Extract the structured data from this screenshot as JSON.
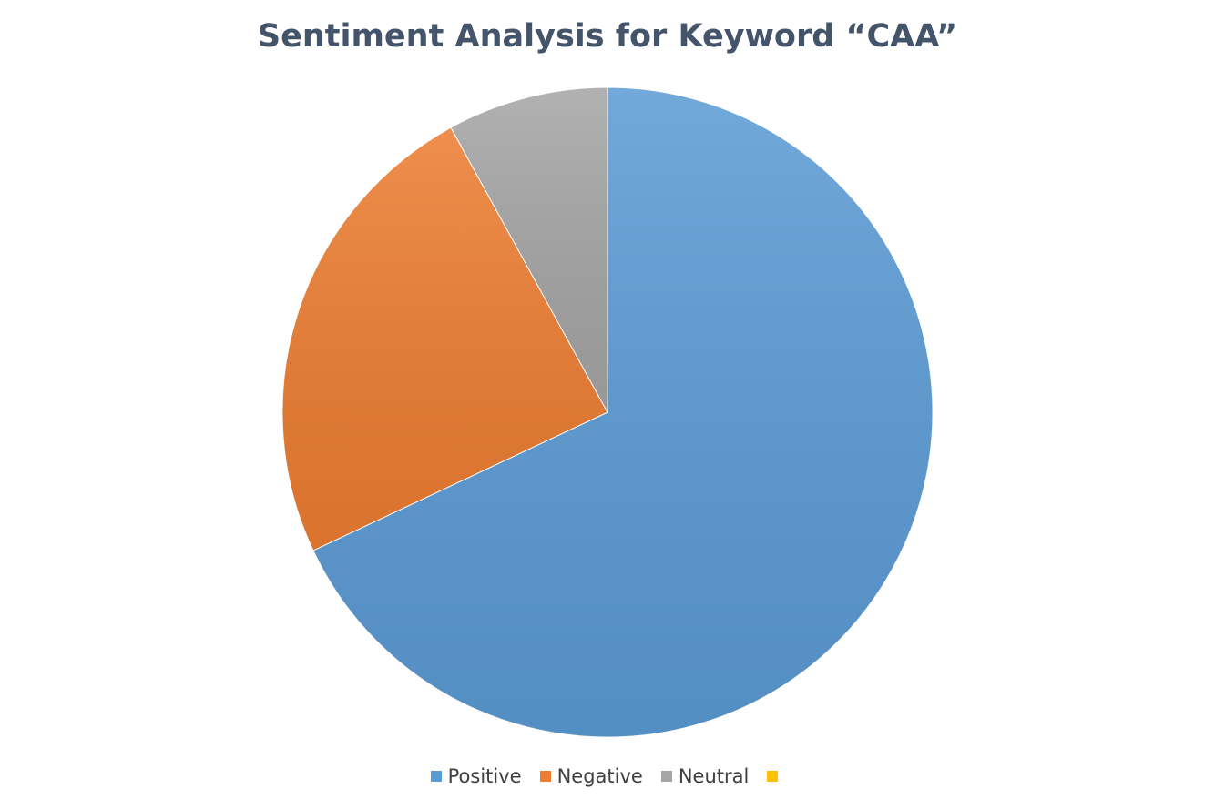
{
  "chart_data": {
    "type": "pie",
    "title": "Sentiment Analysis for Keyword “CAA”",
    "categories": [
      "Positive",
      "Negative",
      "Neutral",
      ""
    ],
    "values": [
      68,
      24,
      8,
      0
    ],
    "colors": [
      "#5b9bd5",
      "#ed7d31",
      "#a5a5a5",
      "#ffc000"
    ],
    "legend_position": "bottom"
  }
}
